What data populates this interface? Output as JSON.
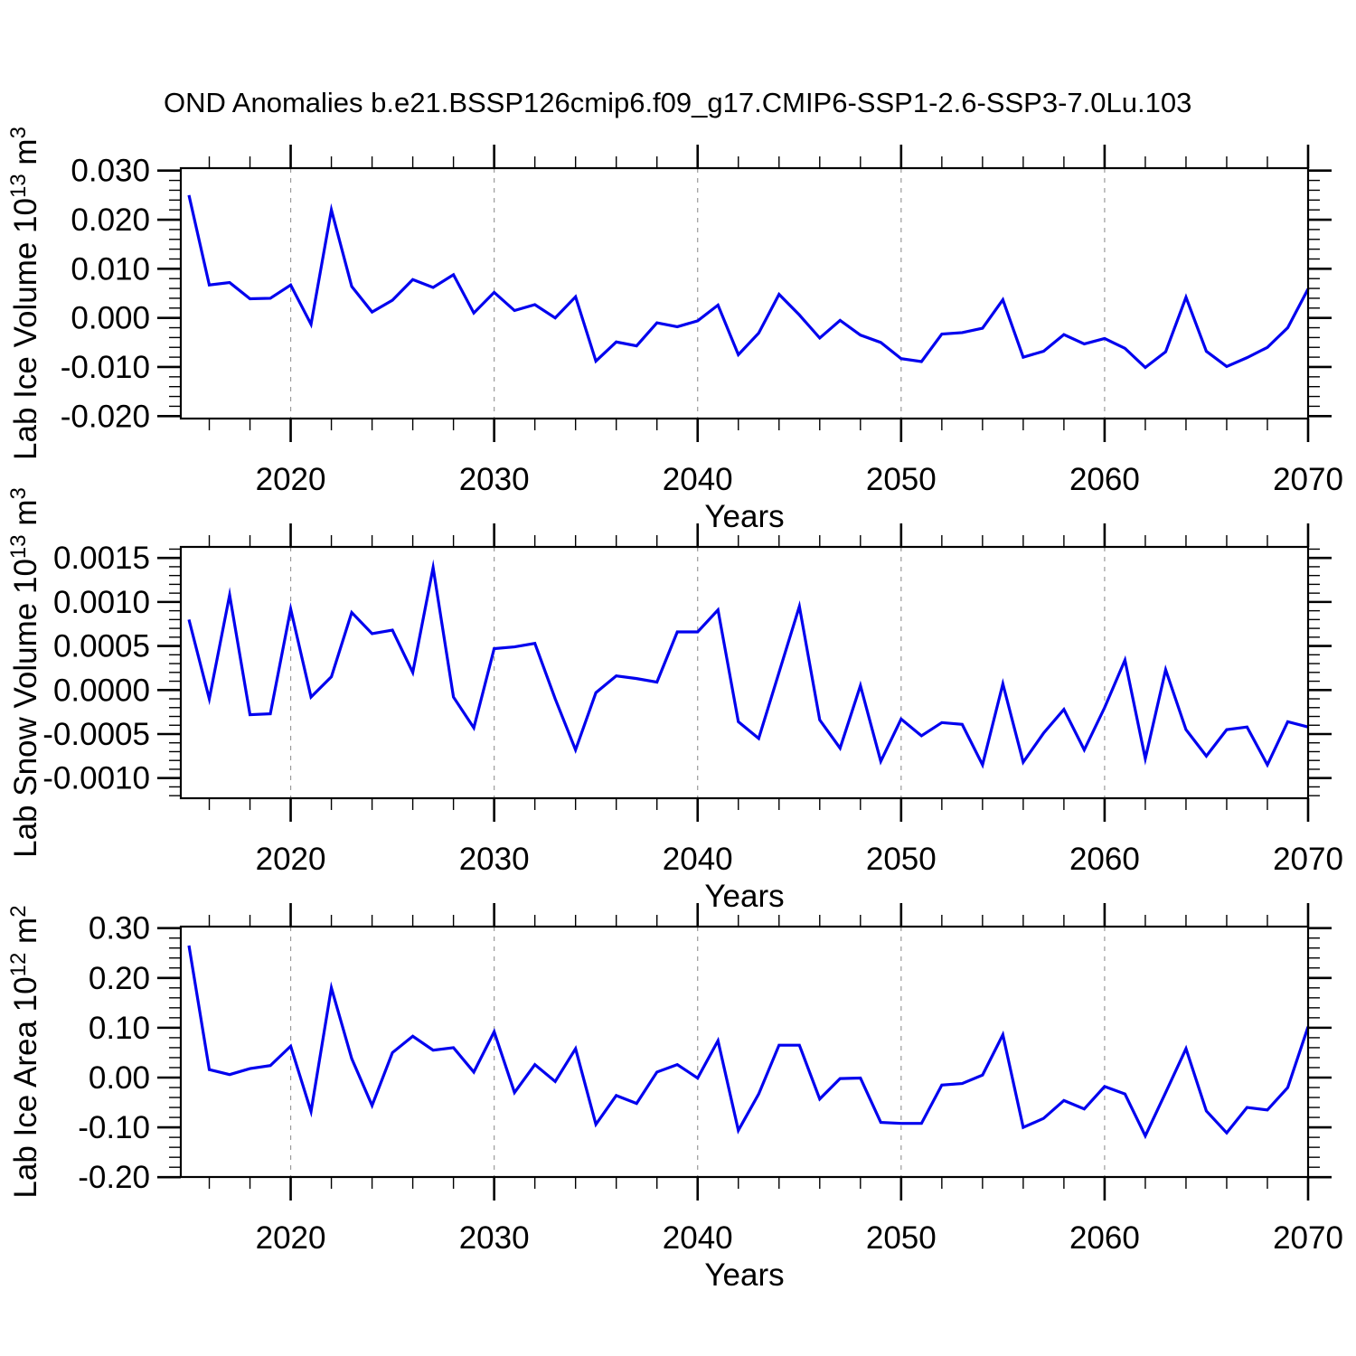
{
  "title": "OND Anomalies b.e21.BSSP126cmip6.f09_g17.CMIP6-SSP1-2.6-SSP3-7.0Lu.103",
  "colors": {
    "line": "#0000EE",
    "grid": "#9A9A9A",
    "axis": "#000000",
    "text": "#000000",
    "background": "#FFFFFF"
  },
  "x_axis": {
    "label": "Years",
    "lim": [
      2014.6,
      2070
    ],
    "major_ticks": [
      2020,
      2030,
      2040,
      2050,
      2060,
      2070
    ],
    "minor_step": 2,
    "grid_years": [
      2020,
      2030,
      2040,
      2050,
      2060
    ]
  },
  "years": [
    2015,
    2016,
    2017,
    2018,
    2019,
    2020,
    2021,
    2022,
    2023,
    2024,
    2025,
    2026,
    2027,
    2028,
    2029,
    2030,
    2031,
    2032,
    2033,
    2034,
    2035,
    2036,
    2037,
    2038,
    2039,
    2040,
    2041,
    2042,
    2043,
    2044,
    2045,
    2046,
    2047,
    2048,
    2049,
    2050,
    2051,
    2052,
    2053,
    2054,
    2055,
    2056,
    2057,
    2058,
    2059,
    2060,
    2061,
    2062,
    2063,
    2064,
    2065,
    2066,
    2067,
    2068,
    2069,
    2070
  ],
  "chart_data": [
    {
      "type": "line",
      "id": "lab-ice-volume",
      "ylabel": "Lab Ice Volume 10^13^ m^3^",
      "xlabel": "Years",
      "ylim": [
        -0.0205,
        0.0305
      ],
      "ytick_values": [
        0.03,
        0.02,
        0.01,
        0.0,
        -0.01,
        -0.02
      ],
      "ytick_labels": [
        "0.030",
        "0.020",
        "0.010",
        "0.000",
        "-0.010",
        "-0.020"
      ],
      "yminor_step": 0.002,
      "grid": "vertical-dashed-decades",
      "values": [
        0.025,
        0.0067,
        0.0072,
        0.0039,
        0.004,
        0.0067,
        -0.0013,
        0.022,
        0.0064,
        0.0012,
        0.0036,
        0.0078,
        0.0062,
        0.0088,
        0.001,
        0.0052,
        0.0015,
        0.0027,
        0.0,
        0.0043,
        -0.0088,
        -0.0049,
        -0.0057,
        -0.001,
        -0.0018,
        -0.0006,
        0.0026,
        -0.0075,
        -0.0031,
        0.0048,
        0.0006,
        -0.0041,
        -0.0005,
        -0.0035,
        -0.005,
        -0.0083,
        -0.0089,
        -0.0033,
        -0.003,
        -0.0021,
        0.0037,
        -0.008,
        -0.0068,
        -0.0034,
        -0.0053,
        -0.0042,
        -0.0062,
        -0.0101,
        -0.0069,
        0.0042,
        -0.0068,
        -0.0099,
        -0.0081,
        -0.006,
        -0.002,
        0.0059
      ]
    },
    {
      "type": "line",
      "id": "lab-snow-volume",
      "ylabel": "Lab Snow Volume 10^13^ m^3^",
      "xlabel": "Years",
      "ylim": [
        -0.001229,
        0.001625
      ],
      "ytick_values": [
        0.0015,
        0.001,
        0.0005,
        0.0,
        -0.0005,
        -0.001
      ],
      "ytick_labels": [
        "0.0015",
        "0.0010",
        "0.0005",
        "0.0000",
        "-0.0005",
        "-0.0010"
      ],
      "yminor_step": 0.0001,
      "grid": "vertical-dashed-decades",
      "values": [
        0.0008,
        -0.0001,
        0.00108,
        -0.00028,
        -0.00027,
        0.00092,
        -8e-05,
        0.00015,
        0.00088,
        0.00064,
        0.00068,
        0.0002,
        0.00139,
        -8e-05,
        -0.00043,
        0.00047,
        0.00049,
        0.00053,
        -0.0001,
        -0.00068,
        -3e-05,
        0.00016,
        0.00013,
        9e-05,
        0.00066,
        0.00066,
        0.00091,
        -0.00036,
        -0.00055,
        0.0002,
        0.00095,
        -0.00034,
        -0.00066,
        5e-05,
        -0.00081,
        -0.00033,
        -0.00052,
        -0.00037,
        -0.00039,
        -0.00085,
        7e-05,
        -0.00082,
        -0.00049,
        -0.00022,
        -0.00068,
        -0.0002,
        0.00034,
        -0.00078,
        0.00023,
        -0.00045,
        -0.00075,
        -0.00045,
        -0.00042,
        -0.00085,
        -0.00036,
        -0.00042
      ]
    },
    {
      "type": "line",
      "id": "lab-ice-area",
      "ylabel": "Lab Ice Area 10^12^ m^2^",
      "xlabel": "Years",
      "ylim": [
        -0.1996,
        0.303
      ],
      "ytick_values": [
        0.3,
        0.2,
        0.1,
        0.0,
        -0.1,
        -0.2
      ],
      "ytick_labels": [
        "0.30",
        "0.20",
        "0.10",
        "0.00",
        "-0.10",
        "-0.20"
      ],
      "yminor_step": 0.02,
      "grid": "vertical-dashed-decades",
      "values": [
        0.265,
        0.016,
        0.006,
        0.018,
        0.024,
        0.063,
        -0.068,
        0.18,
        0.038,
        -0.056,
        0.05,
        0.083,
        0.055,
        0.06,
        0.011,
        0.092,
        -0.03,
        0.026,
        -0.008,
        0.058,
        -0.094,
        -0.036,
        -0.052,
        0.011,
        0.026,
        -0.001,
        0.074,
        -0.106,
        -0.033,
        0.065,
        0.065,
        -0.043,
        -0.002,
        -0.001,
        -0.09,
        -0.092,
        -0.092,
        -0.015,
        -0.012,
        0.005,
        0.086,
        -0.1,
        -0.082,
        -0.046,
        -0.063,
        -0.018,
        -0.033,
        -0.117,
        -0.03,
        0.058,
        -0.067,
        -0.111,
        -0.06,
        -0.065,
        -0.02,
        0.102
      ]
    }
  ]
}
